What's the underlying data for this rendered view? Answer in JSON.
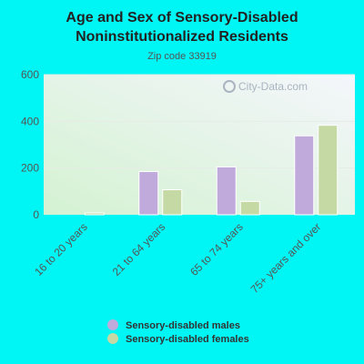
{
  "chart_data": {
    "type": "bar",
    "title_line1": "Age and Sex of Sensory-Disabled",
    "title_line2": "Noninstitutionalized Residents",
    "subtitle": "Zip code 33919",
    "categories": [
      "16 to 20 years",
      "21 to 64 years",
      "65 to 74 years",
      "75+ years and over"
    ],
    "series": [
      {
        "name": "Sensory-disabled males",
        "values": [
          0,
          185,
          205,
          338
        ],
        "color": "#c0aadc"
      },
      {
        "name": "Sensory-disabled females",
        "values": [
          8,
          107,
          57,
          383
        ],
        "color": "#c4d9a4"
      }
    ],
    "ylim": [
      0,
      600
    ],
    "yticks": [
      "0",
      "200",
      "400",
      "600"
    ],
    "ytick_values": [
      0,
      200,
      400,
      600
    ],
    "grid": true,
    "legend_position": "bottom",
    "watermark": "City-Data.com"
  }
}
